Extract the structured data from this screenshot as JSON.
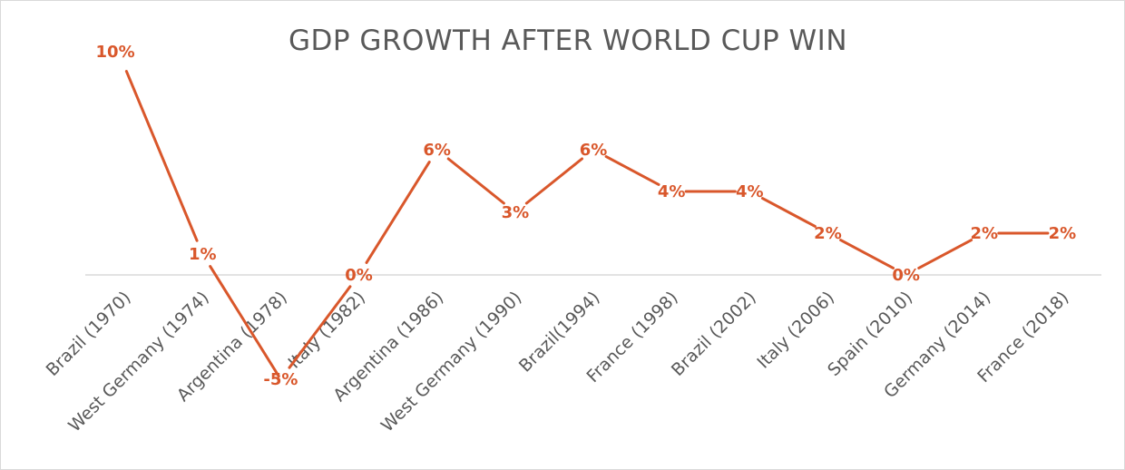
{
  "colors": {
    "series": "#d9572b",
    "axis": "#d9d9d9",
    "text": "#595959"
  },
  "chart_data": {
    "type": "line",
    "title": "GDP GROWTH AFTER WORLD CUP WIN",
    "xlabel": "",
    "ylabel": "",
    "categories": [
      "Brazil (1970)",
      "West Germany (1974)",
      "Argentina (1978)",
      "Italy (1982)",
      "Argentina (1986)",
      "West Germany (1990)",
      "Brazil(1994)",
      "France (1998)",
      "Brazil (2002)",
      "Italy (2006)",
      "Spain (2010)",
      "Germany (2014)",
      "France (2018)"
    ],
    "series": [
      {
        "values": [
          10,
          1,
          -5,
          0,
          6,
          3,
          6,
          4,
          4,
          2,
          0,
          2,
          2
        ],
        "labels": [
          "10%",
          "1%",
          "-5%",
          "0%",
          "6%",
          "3%",
          "6%",
          "4%",
          "4%",
          "2%",
          "0%",
          "2%",
          "2%"
        ]
      }
    ],
    "ylim": [
      -5,
      10
    ],
    "grid": false,
    "legend": "none"
  }
}
